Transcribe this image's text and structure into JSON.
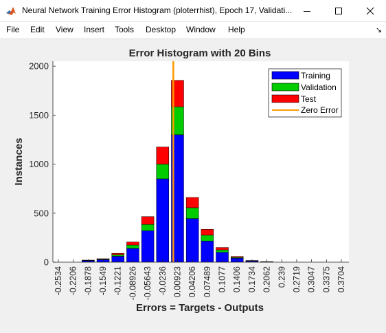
{
  "window": {
    "title": "Neural Network Training Error Histogram (ploterrhist), Epoch 17, Validati...",
    "icon": "matlab-icon",
    "controls": [
      "minimize-icon",
      "maximize-icon",
      "close-icon"
    ]
  },
  "menu": {
    "items": [
      "File",
      "Edit",
      "View",
      "Insert",
      "Tools",
      "Desktop",
      "Window",
      "Help"
    ],
    "dock_icon": "dock-arrow-icon"
  },
  "chart_data": {
    "type": "bar",
    "stacked": true,
    "title": "Error Histogram with 20 Bins",
    "xlabel": "Errors = Targets - Outputs",
    "ylabel": "Instances",
    "ylim": [
      0,
      2050
    ],
    "yticks": [
      0,
      500,
      1000,
      1500,
      2000
    ],
    "categories": [
      "-0.2534",
      "-0.2206",
      "-0.1878",
      "-0.1549",
      "-0.1221",
      "-0.08926",
      "-0.05643",
      "-0.0236",
      "0.00923",
      "0.04206",
      "0.07489",
      "0.1077",
      "0.1406",
      "0.1734",
      "0.2062",
      "0.239",
      "0.2719",
      "0.3047",
      "0.3375",
      "0.3704"
    ],
    "series": [
      {
        "name": "Training",
        "color": "#0000ff",
        "values": [
          0,
          0,
          15,
          25,
          60,
          140,
          320,
          850,
          1300,
          445,
          215,
          100,
          40,
          12,
          3,
          0,
          0,
          0,
          0,
          0
        ]
      },
      {
        "name": "Validation",
        "color": "#00cc00",
        "values": [
          0,
          0,
          3,
          5,
          15,
          35,
          65,
          150,
          285,
          110,
          60,
          25,
          8,
          2,
          1,
          0,
          0,
          0,
          0,
          0
        ]
      },
      {
        "name": "Test",
        "color": "#ff0000",
        "values": [
          0,
          0,
          3,
          5,
          15,
          30,
          80,
          175,
          270,
          105,
          60,
          25,
          10,
          3,
          1,
          0,
          0,
          0,
          0,
          0
        ]
      }
    ],
    "zero_error": {
      "name": "Zero Error",
      "color": "#ff9900",
      "value": 0
    },
    "legend": {
      "position": "top-right",
      "entries": [
        "Training",
        "Validation",
        "Test",
        "Zero Error"
      ]
    },
    "grid": false
  }
}
